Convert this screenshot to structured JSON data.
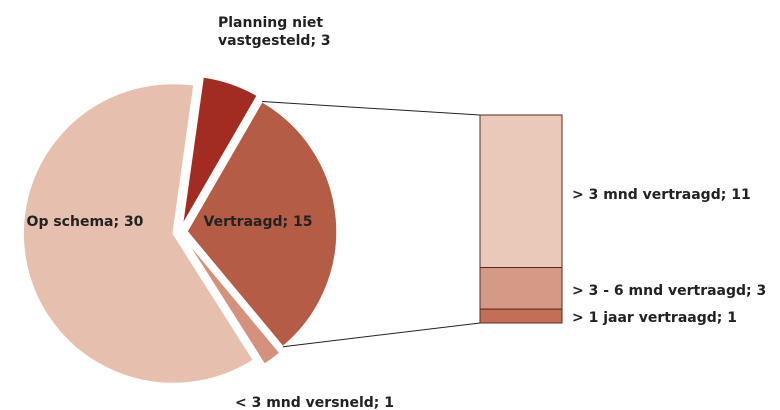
{
  "chart_data": {
    "type": "pie",
    "values": [
      30,
      3,
      15,
      1
    ],
    "value_labels": [
      "Op schema; 30",
      "Planning niet vastgesteld; 3",
      "Vertraagd; 15",
      "< 3 mnd versneld; 1"
    ],
    "colors": [
      "#e6bfae",
      "#a32c22",
      "#b55c47",
      "#d4927e"
    ],
    "breakdown": {
      "values": [
        11,
        3,
        1
      ],
      "value_labels": [
        "> 3 mnd vertraagd; 11",
        "> 3 - 6 mnd vertraagd; 3",
        "> 1 jaar vertraagd; 1"
      ],
      "colors": [
        "#eac9bb",
        "#d49a86",
        "#c46e55"
      ]
    }
  }
}
